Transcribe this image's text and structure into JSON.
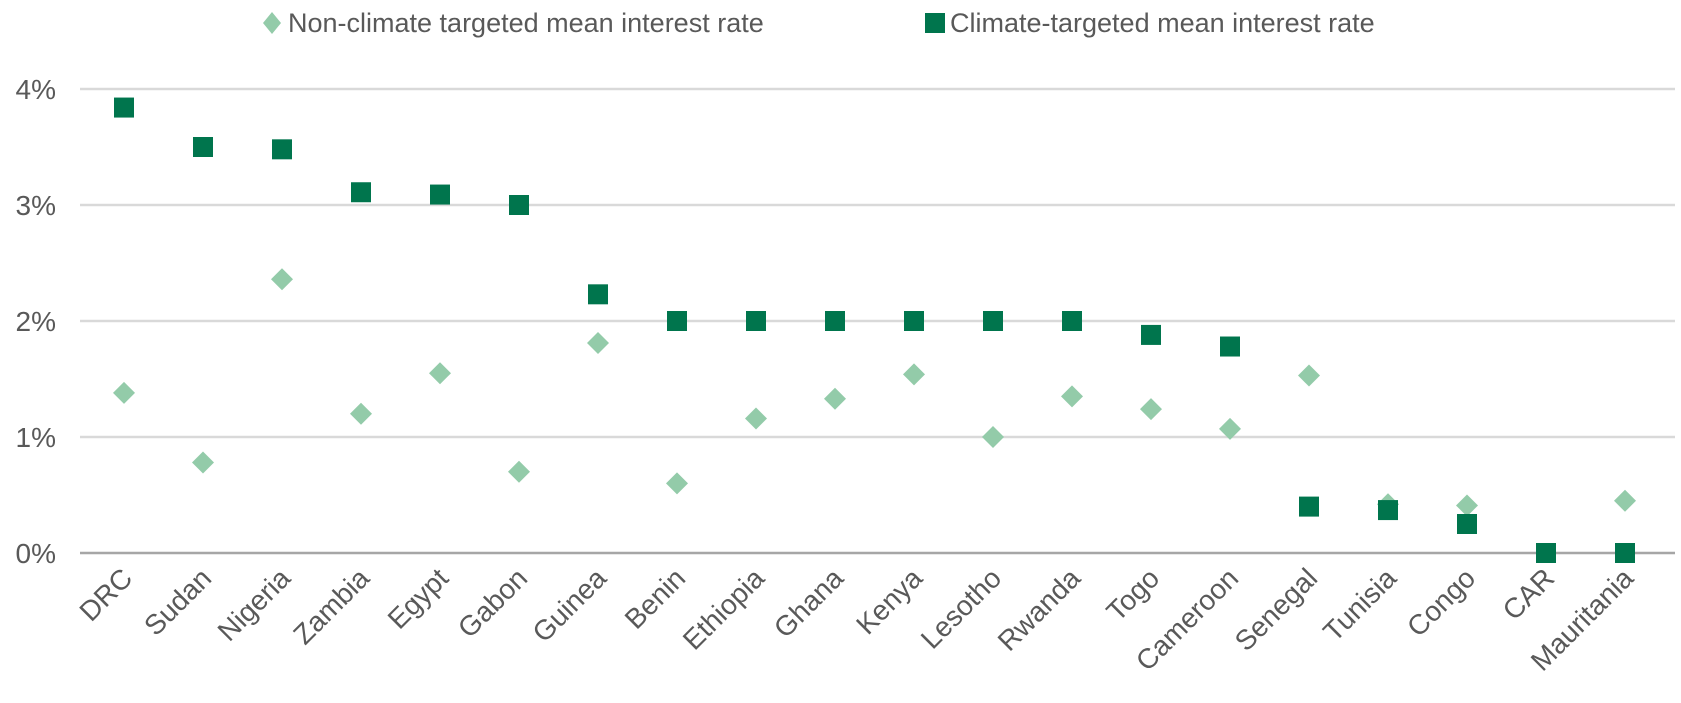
{
  "chart_data": {
    "type": "scatter",
    "title": "",
    "xlabel": "",
    "ylabel": "",
    "ylim": [
      0,
      4
    ],
    "yticks": [
      0,
      1,
      2,
      3,
      4
    ],
    "ytick_labels": [
      "0%",
      "1%",
      "2%",
      "3%",
      "4%"
    ],
    "grid": true,
    "legend_position": "top",
    "categories": [
      "DRC",
      "Sudan",
      "Nigeria",
      "Zambia",
      "Egypt",
      "Gabon",
      "Guinea",
      "Benin",
      "Ethiopia",
      "Ghana",
      "Kenya",
      "Lesotho",
      "Rwanda",
      "Togo",
      "Cameroon",
      "Senegal",
      "Tunisia",
      "Congo",
      "CAR",
      "Mauritania"
    ],
    "series": [
      {
        "name": "Non-climate targeted mean interest rate",
        "marker": "diamond",
        "color": "#93CBA9",
        "values": [
          1.38,
          0.78,
          2.36,
          1.2,
          1.55,
          0.7,
          1.81,
          0.6,
          1.16,
          1.33,
          1.54,
          1.0,
          1.35,
          1.24,
          1.07,
          1.53,
          0.42,
          0.41,
          null,
          0.45
        ]
      },
      {
        "name": "Climate-targeted mean interest rate",
        "marker": "square",
        "color": "#00754D",
        "values": [
          3.84,
          3.5,
          3.48,
          3.11,
          3.09,
          3.0,
          2.23,
          2.0,
          2.0,
          2.0,
          2.0,
          2.0,
          2.0,
          1.88,
          1.78,
          0.4,
          0.37,
          0.25,
          0.0,
          0.0
        ]
      }
    ]
  },
  "colors": {
    "gridline": "#D9D9D9",
    "axis": "#A6A6A6",
    "text": "#595959"
  }
}
